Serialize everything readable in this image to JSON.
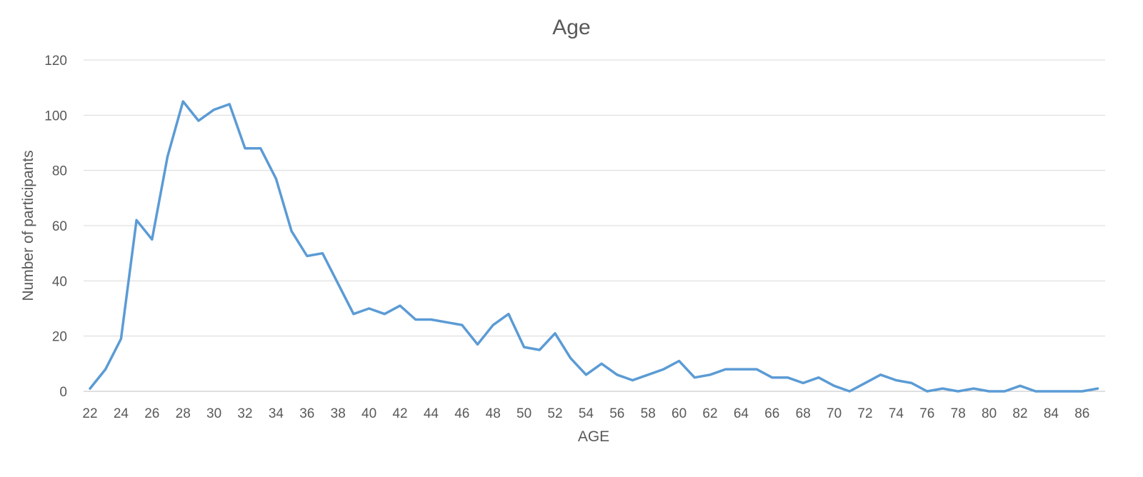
{
  "chart_data": {
    "type": "line",
    "title": "Age",
    "xlabel": "AGE",
    "ylabel": "Number of participants",
    "x": [
      22,
      23,
      24,
      25,
      26,
      27,
      28,
      29,
      30,
      31,
      32,
      33,
      34,
      35,
      36,
      37,
      38,
      39,
      40,
      41,
      42,
      43,
      44,
      45,
      46,
      47,
      48,
      49,
      50,
      51,
      52,
      53,
      54,
      55,
      56,
      57,
      58,
      59,
      60,
      61,
      62,
      63,
      64,
      65,
      66,
      67,
      68,
      69,
      70,
      71,
      72,
      73,
      74,
      75,
      76,
      77,
      78,
      79,
      80,
      81,
      82,
      83,
      84,
      85,
      86,
      87
    ],
    "series": [
      {
        "values": [
          1,
          8,
          19,
          62,
          55,
          85,
          105,
          98,
          102,
          104,
          88,
          88,
          77,
          58,
          49,
          50,
          39,
          28,
          30,
          28,
          31,
          26,
          26,
          25,
          24,
          17,
          24,
          28,
          16,
          15,
          21,
          12,
          6,
          10,
          6,
          4,
          6,
          8,
          11,
          5,
          6,
          8,
          8,
          8,
          5,
          5,
          3,
          5,
          2,
          0,
          3,
          6,
          4,
          3,
          0,
          1,
          0,
          1,
          0,
          0,
          2,
          0,
          0,
          0,
          0,
          1
        ],
        "color": "#5b9bd5"
      }
    ],
    "x_tick_labels": [
      "22",
      "24",
      "26",
      "28",
      "30",
      "32",
      "34",
      "36",
      "38",
      "40",
      "42",
      "44",
      "46",
      "48",
      "50",
      "52",
      "54",
      "56",
      "58",
      "60",
      "62",
      "64",
      "66",
      "68",
      "70",
      "72",
      "74",
      "76",
      "78",
      "80",
      "82",
      "84",
      "86"
    ],
    "y_tick_labels": [
      "0",
      "20",
      "40",
      "60",
      "80",
      "100",
      "120"
    ],
    "ylim": [
      0,
      120
    ],
    "xlim": [
      22,
      87
    ],
    "grid": true,
    "legend": "none"
  }
}
